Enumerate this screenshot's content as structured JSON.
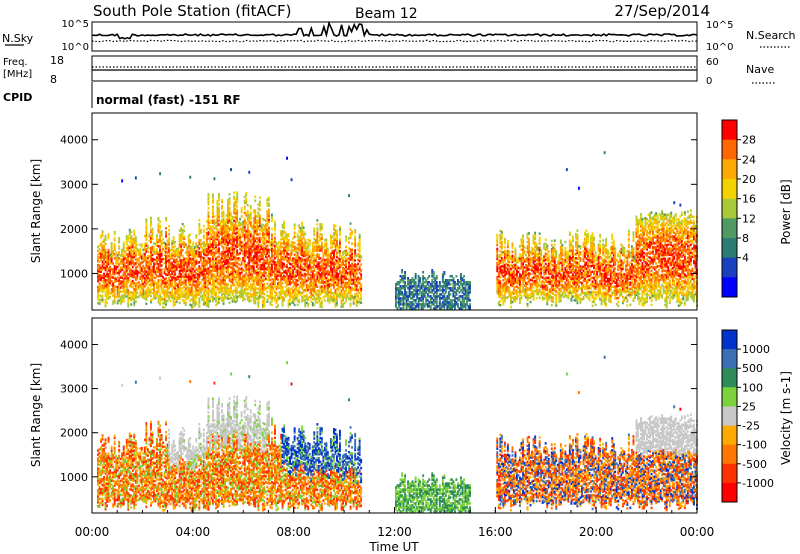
{
  "header": {
    "station": "South Pole Station (fitACF)",
    "beam": "Beam 12",
    "date": "27/Sep/2014"
  },
  "top_panels": {
    "nsky_label": "N.Sky",
    "nsky_ticks": [
      "10^5",
      "10^0"
    ],
    "nsearch_label": "N.Search",
    "nsearch_ticks": [
      "10^5",
      "10^0"
    ],
    "freq_label": "Freq.",
    "freq_unit": "[MHz]",
    "freq_ticks": [
      "18",
      "8"
    ],
    "nave_label": "Nave",
    "nave_ticks": [
      "60",
      "0"
    ],
    "cpid_label": "CPID",
    "cpid_value": "normal (fast) -151 RF"
  },
  "chart_data": [
    {
      "type": "heatmap",
      "variable": "power",
      "ylabel": "Slant Range [km]",
      "xlabel": "",
      "ylim": [
        180,
        4600
      ],
      "y_ticks": [
        "1000",
        "2000",
        "3000",
        "4000"
      ],
      "x_range_hours": [
        0,
        24
      ],
      "colorbar_label": "Power [dB]",
      "colorbar_ticks": [
        "28",
        "24",
        "20",
        "16",
        "12",
        "8",
        "4"
      ],
      "colorbar_colors": [
        "#ff0000",
        "#ff6600",
        "#ffaa00",
        "#f4d200",
        "#a8c93a",
        "#4f9a64",
        "#2c7c74",
        "#1a3fbf",
        "#0000ff"
      ],
      "structures": [
        {
          "start_h": 0.3,
          "end_h": 10.7,
          "range_km": [
            250,
            2500
          ],
          "note": "main scatter band"
        },
        {
          "start_h": 12.0,
          "end_h": 15.0,
          "range_km": [
            180,
            1200
          ],
          "note": "low-power near-range echoes"
        },
        {
          "start_h": 16.0,
          "end_h": 24.0,
          "range_km": [
            180,
            2400
          ],
          "note": "afternoon scatter band"
        }
      ]
    },
    {
      "type": "heatmap",
      "variable": "velocity",
      "ylabel": "Slant Range [km]",
      "xlabel": "Time UT",
      "ylim": [
        180,
        4600
      ],
      "y_ticks": [
        "1000",
        "2000",
        "3000",
        "4000"
      ],
      "x_ticks": [
        "00:00",
        "04:00",
        "08:00",
        "12:00",
        "16:00",
        "20:00",
        "00:00"
      ],
      "x_range_hours": [
        0,
        24
      ],
      "colorbar_label": "Velocity [m s-1]",
      "colorbar_ticks": [
        "1000",
        "500",
        "100",
        "25",
        "-25",
        "-100",
        "-500",
        "-1000"
      ],
      "colorbar_colors": [
        "#0033cc",
        "#3b6fb4",
        "#2e8c5a",
        "#7bd23a",
        "#c8c8c8",
        "#ffaa00",
        "#ff7700",
        "#ff3300",
        "#ff0000"
      ],
      "structures": [
        {
          "start_h": 0.3,
          "end_h": 10.7,
          "range_km": [
            250,
            2500
          ],
          "note": "mostly negative velocity (orange)"
        },
        {
          "start_h": 12.0,
          "end_h": 15.0,
          "range_km": [
            180,
            1200
          ],
          "note": "green low velocity"
        },
        {
          "start_h": 16.0,
          "end_h": 24.0,
          "range_km": [
            180,
            2400
          ],
          "note": "mixed orange/blue"
        }
      ]
    }
  ]
}
